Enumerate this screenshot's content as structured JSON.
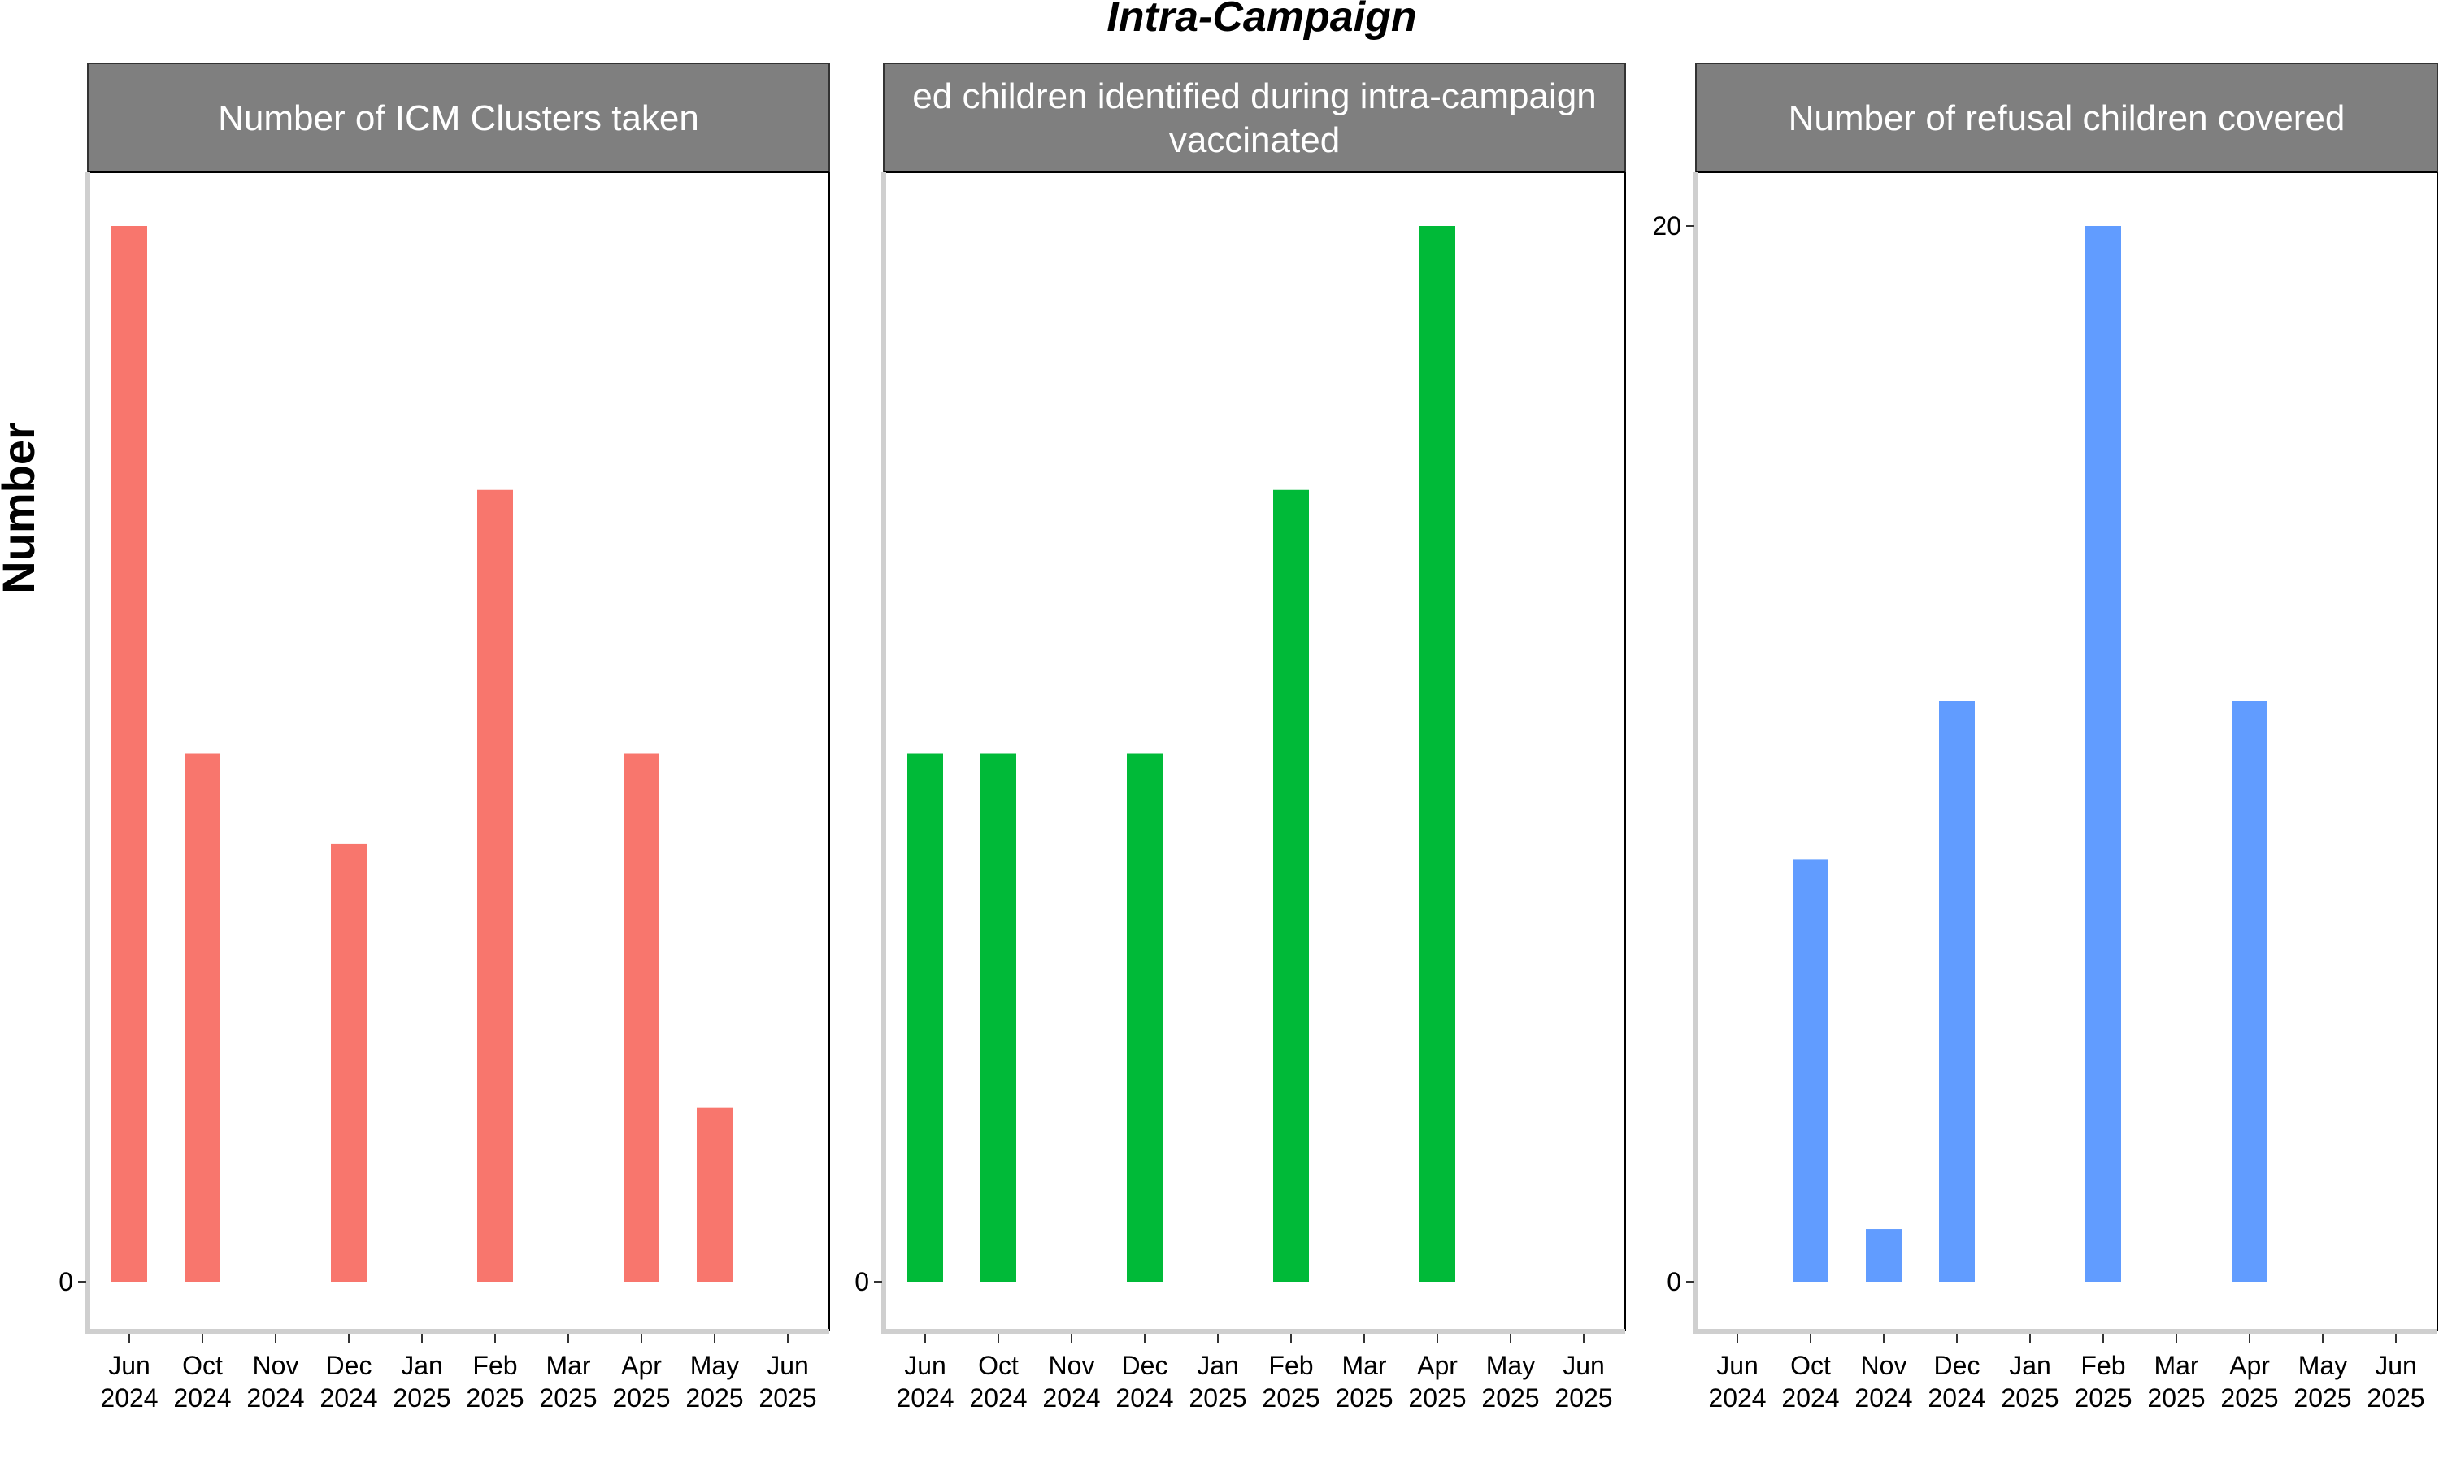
{
  "chart_data": {
    "type": "bar",
    "title": "Intra-Campaign",
    "ylabel": "Number",
    "xlabel": "",
    "x_tick_labels": [
      [
        "Jun",
        "2024"
      ],
      [
        "Oct",
        "2024"
      ],
      [
        "Nov",
        "2024"
      ],
      [
        "Dec",
        "2024"
      ],
      [
        "Jan",
        "2025"
      ],
      [
        "Feb",
        "2025"
      ],
      [
        "Mar",
        "2025"
      ],
      [
        "Apr",
        "2025"
      ],
      [
        "May",
        "2025"
      ],
      [
        "Jun",
        "2025"
      ]
    ],
    "panels": [
      {
        "strip_lines": [
          "Number of ICM Clusters taken"
        ],
        "color": "#F8766D",
        "y_ticks": [
          {
            "value": 0,
            "label": "0"
          }
        ],
        "ylim": [
          0,
          20
        ],
        "bars": [
          {
            "category": 0,
            "value": 20
          },
          {
            "category": 1,
            "value": 10
          },
          {
            "category": 3,
            "value": 8.3
          },
          {
            "category": 5,
            "value": 15
          },
          {
            "category": 7,
            "value": 10
          },
          {
            "category": 8,
            "value": 3.3
          }
        ]
      },
      {
        "strip_lines": [
          "ed children identified during intra-campaign",
          "vaccinated"
        ],
        "color": "#00BA38",
        "y_ticks": [
          {
            "value": 0,
            "label": "0"
          }
        ],
        "ylim": [
          0,
          20
        ],
        "bars": [
          {
            "category": 0,
            "value": 10
          },
          {
            "category": 1,
            "value": 10
          },
          {
            "category": 3,
            "value": 10
          },
          {
            "category": 5,
            "value": 15
          },
          {
            "category": 7,
            "value": 20
          }
        ]
      },
      {
        "strip_lines": [
          "Number of refusal children covered"
        ],
        "color": "#619CFF",
        "y_ticks": [
          {
            "value": 0,
            "label": "0"
          },
          {
            "value": 20,
            "label": "20"
          }
        ],
        "ylim": [
          0,
          20
        ],
        "bars": [
          {
            "category": 1,
            "value": 8
          },
          {
            "category": 2,
            "value": 1
          },
          {
            "category": 3,
            "value": 11
          },
          {
            "category": 5,
            "value": 20
          },
          {
            "category": 7,
            "value": 11
          }
        ]
      }
    ]
  }
}
